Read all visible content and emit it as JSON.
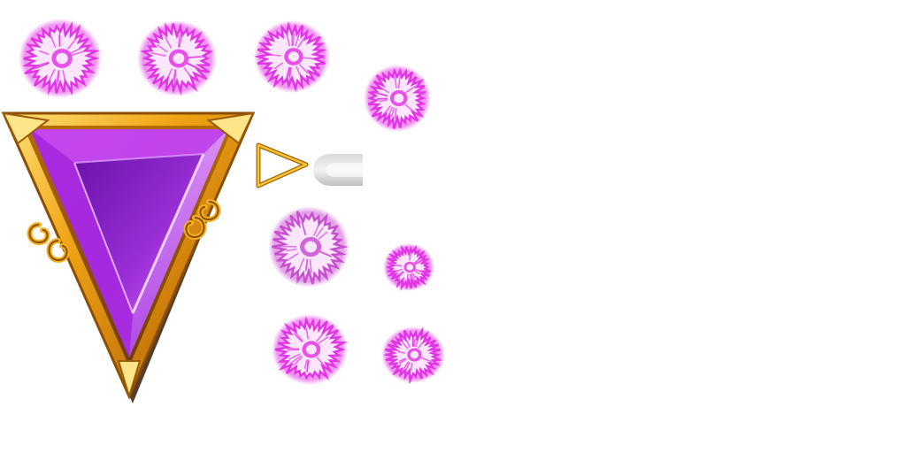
{
  "sheet": {
    "background": "#ffffff",
    "kind": "sprite-atlas"
  },
  "sprites": {
    "gem_frame": {
      "icon": "triangle-amethyst-gem-gold-frame",
      "gem_color": "#a21fd6",
      "frame_color": "#e8a21a"
    },
    "mini_arrow": {
      "icon": "gold-triangle-outline-pointer",
      "color": "#e0a11c"
    },
    "grey_pill": {
      "icon": "grey-rounded-pill-pointer",
      "color": "#c9c9c9"
    },
    "bursts": [
      {
        "icon": "magenta-flash-burst",
        "color": "#e236e6"
      },
      {
        "icon": "magenta-flash-burst",
        "color": "#e236e6"
      },
      {
        "icon": "magenta-flash-burst",
        "color": "#e236e6"
      },
      {
        "icon": "magenta-flash-burst",
        "color": "#e236e6"
      },
      {
        "icon": "magenta-flash-burst-dim",
        "color": "#c94fd1"
      },
      {
        "icon": "magenta-flash-burst",
        "color": "#e236e6"
      },
      {
        "icon": "magenta-flash-burst",
        "color": "#e236e6"
      },
      {
        "icon": "magenta-flash-burst",
        "color": "#e236e6"
      }
    ]
  }
}
